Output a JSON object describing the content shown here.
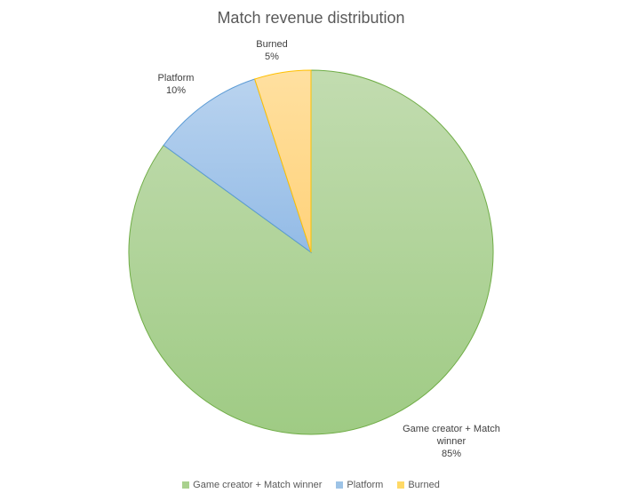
{
  "chart_data": {
    "type": "pie",
    "title": "Match revenue distribution",
    "slices": [
      {
        "label": "Game creator + Match winner",
        "value": 85,
        "value_label": "85%",
        "color": "#a9d18e",
        "stroke": "#70ad47"
      },
      {
        "label": "Platform",
        "value": 10,
        "value_label": "10%",
        "color": "#9dc3e6",
        "stroke": "#5b9bd5"
      },
      {
        "label": "Burned",
        "value": 5,
        "value_label": "5%",
        "color": "#ffd966",
        "stroke": "#ffc000"
      }
    ],
    "legend_position": "bottom"
  }
}
